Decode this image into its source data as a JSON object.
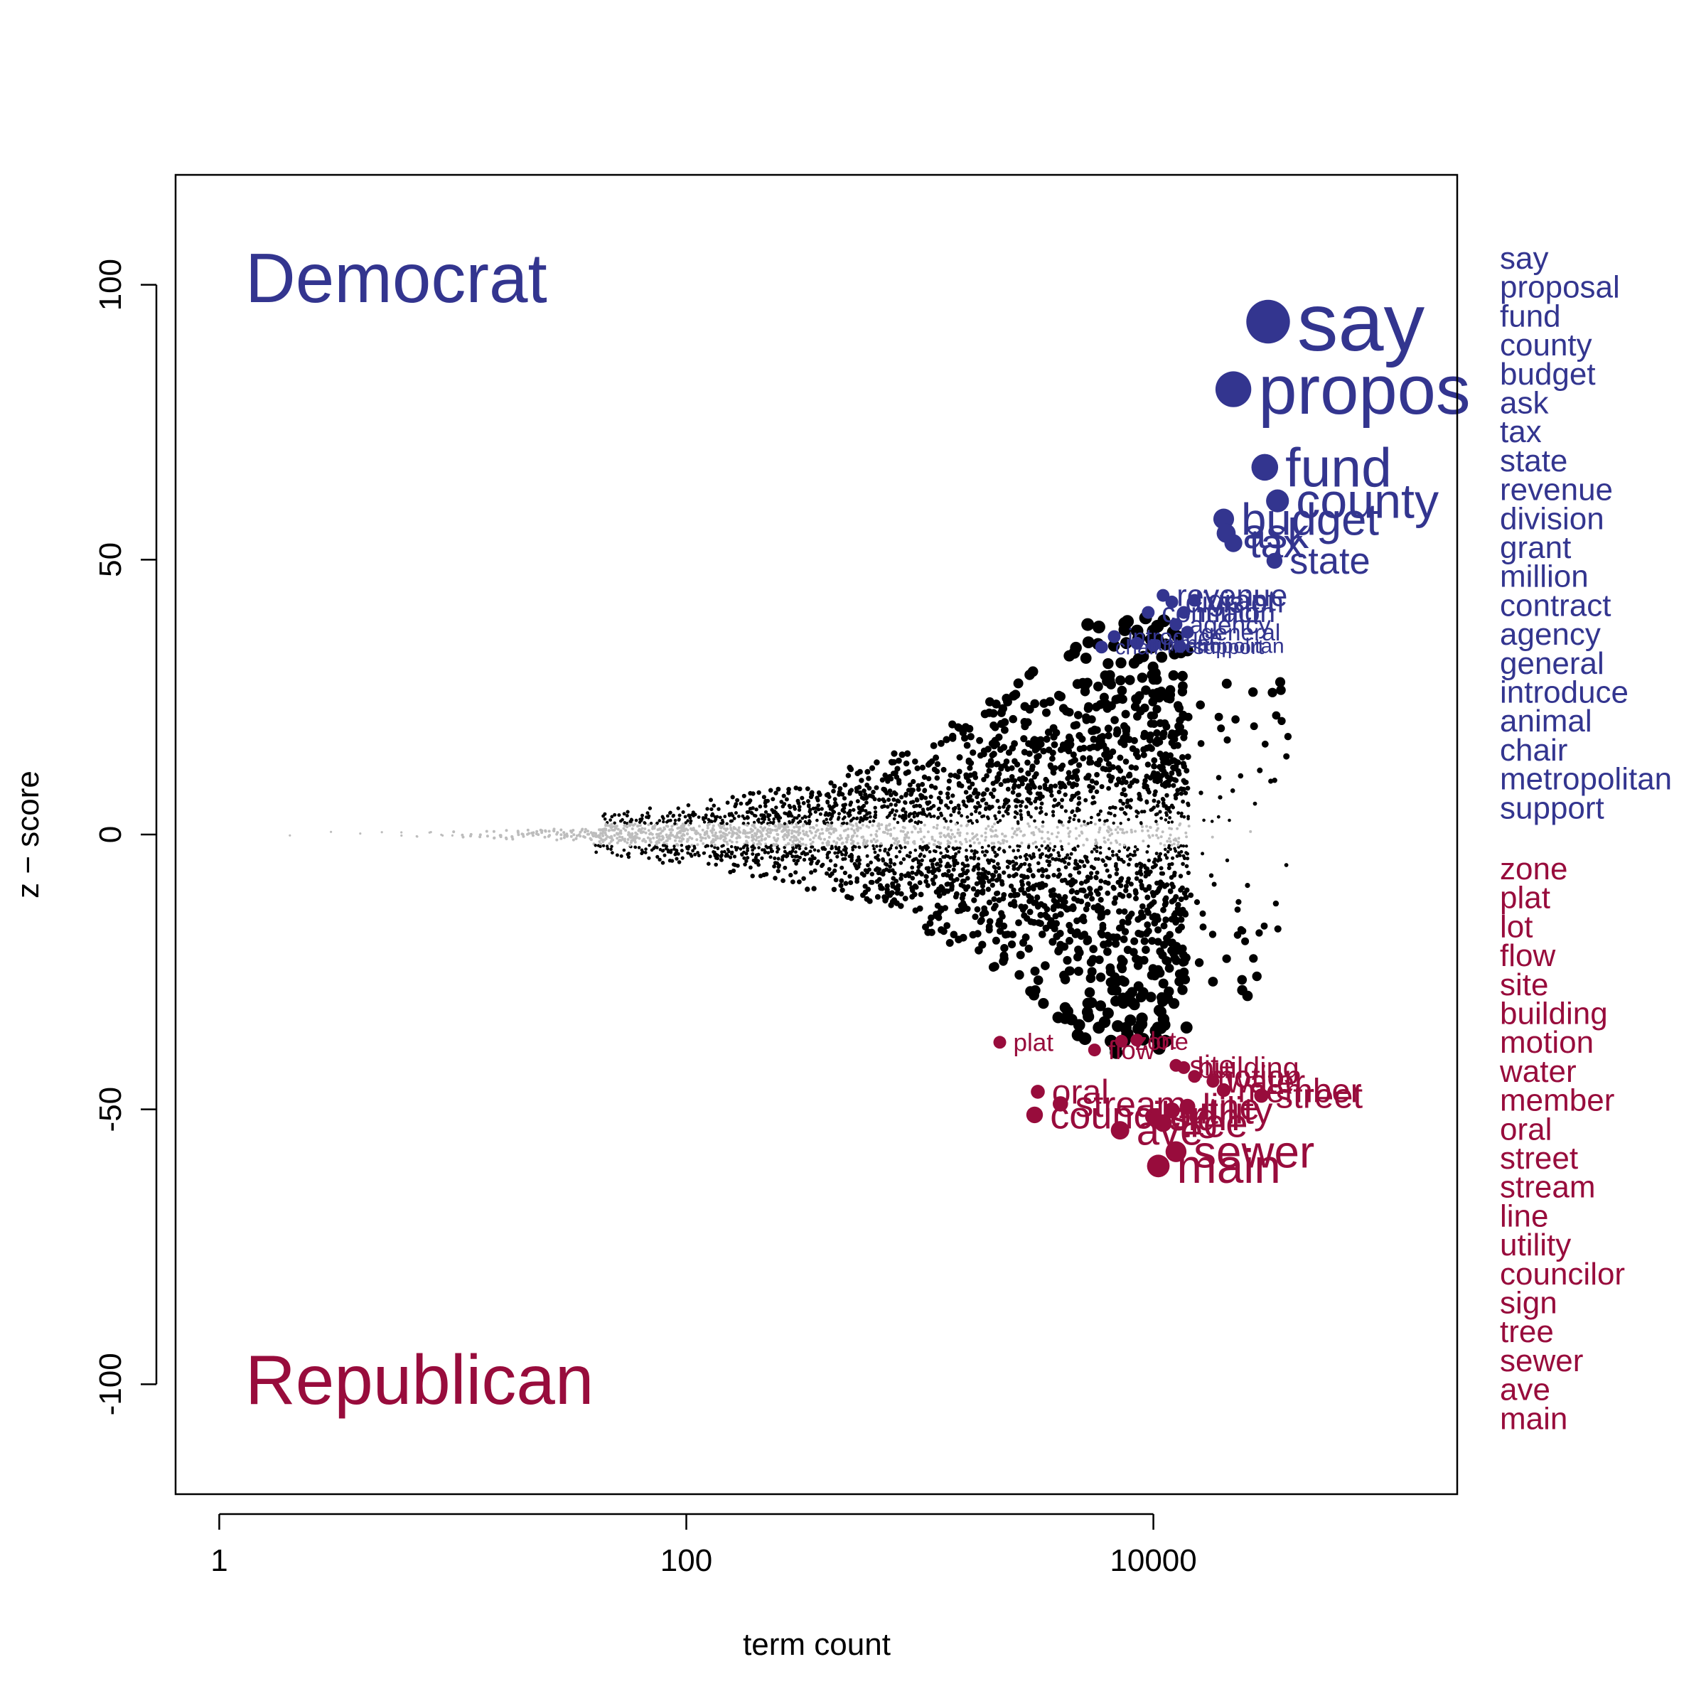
{
  "chart_data": {
    "type": "scatter",
    "xlabel": "term count",
    "ylabel": "z − score",
    "x_scale": "log10",
    "xlim": [
      0.65,
      200000
    ],
    "ylim": [
      -120,
      120
    ],
    "x_ticks": [
      {
        "value": 1,
        "label": "1"
      },
      {
        "value": 100,
        "label": "100"
      },
      {
        "value": 10000,
        "label": "10000"
      }
    ],
    "y_ticks": [
      {
        "value": 100,
        "label": "100"
      },
      {
        "value": 50,
        "label": "50"
      },
      {
        "value": 0,
        "label": "0"
      },
      {
        "value": -50,
        "label": "-50"
      },
      {
        "value": -100,
        "label": "-100"
      }
    ],
    "grid": false,
    "colors": {
      "democrat": "#33358f",
      "republican": "#980c3c",
      "neutral": "#000000",
      "insignificant": "#bdbdbd"
    },
    "group_labels": {
      "democrat": "Democrat",
      "republican": "Republican"
    },
    "democrat_terms": [
      {
        "term": "say",
        "count": 31000,
        "z": 93.3
      },
      {
        "term": "propos",
        "count": 22000,
        "z": 81.0
      },
      {
        "term": "fund",
        "count": 30000,
        "z": 66.8
      },
      {
        "term": "county",
        "count": 34000,
        "z": 60.7
      },
      {
        "term": "budget",
        "count": 20000,
        "z": 57.4
      },
      {
        "term": "ask",
        "count": 20500,
        "z": 54.8
      },
      {
        "term": "tax",
        "count": 22000,
        "z": 53.0
      },
      {
        "term": "state",
        "count": 33000,
        "z": 49.8
      },
      {
        "term": "revenue",
        "count": 11000,
        "z": 43.5
      },
      {
        "term": "division",
        "count": 12000,
        "z": 42.3
      },
      {
        "term": "grant",
        "count": 15000,
        "z": 42.6
      },
      {
        "term": "million",
        "count": 13500,
        "z": 40.4
      },
      {
        "term": "contract",
        "count": 9500,
        "z": 40.4
      },
      {
        "term": "agency",
        "count": 12500,
        "z": 38.2
      },
      {
        "term": "general",
        "count": 14000,
        "z": 36.8
      },
      {
        "term": "introduce",
        "count": 6800,
        "z": 36.0
      },
      {
        "term": "animal",
        "count": 8500,
        "z": 34.8
      },
      {
        "term": "chair",
        "count": 6000,
        "z": 34.1
      },
      {
        "term": "metropolitan",
        "count": 10000,
        "z": 34.4
      },
      {
        "term": "support",
        "count": 13000,
        "z": 34.2
      }
    ],
    "republican_terms": [
      {
        "term": "zone",
        "count": 7300,
        "z": -37.6
      },
      {
        "term": "plat",
        "count": 2200,
        "z": -37.8
      },
      {
        "term": "lot",
        "count": 8500,
        "z": -37.4
      },
      {
        "term": "flow",
        "count": 5600,
        "z": -39.2
      },
      {
        "term": "site",
        "count": 12500,
        "z": -42.0
      },
      {
        "term": "building",
        "count": 13500,
        "z": -42.4
      },
      {
        "term": "motion",
        "count": 15000,
        "z": -44.0
      },
      {
        "term": "water",
        "count": 18000,
        "z": -44.9
      },
      {
        "term": "member",
        "count": 20000,
        "z": -46.5
      },
      {
        "term": "oral",
        "count": 3200,
        "z": -46.8
      },
      {
        "term": "street",
        "count": 29000,
        "z": -47.5
      },
      {
        "term": "stream",
        "count": 4000,
        "z": -49.0
      },
      {
        "term": "line",
        "count": 14000,
        "z": -49.5
      },
      {
        "term": "utility",
        "count": 12000,
        "z": -50.2
      },
      {
        "term": "councilor",
        "count": 3100,
        "z": -51.0
      },
      {
        "term": "sign",
        "count": 10000,
        "z": -51.3
      },
      {
        "term": "tree",
        "count": 11000,
        "z": -52.5
      },
      {
        "term": "sewer",
        "count": 12500,
        "z": -57.7
      },
      {
        "term": "ave",
        "count": 7200,
        "z": -53.8
      },
      {
        "term": "main",
        "count": 10500,
        "z": -60.3
      }
    ],
    "other_points": "approx. 5000 non-highlighted terms: black dots (|z| above significance threshold) and gray dots (insignificant), fanning out from count ~1 to ~40000 with |z| up to ~40"
  },
  "side_legend": {
    "democrat": [
      "say",
      "proposal",
      "fund",
      "county",
      "budget",
      "ask",
      "tax",
      "state",
      "revenue",
      "division",
      "grant",
      "million",
      "contract",
      "agency",
      "general",
      "introduce",
      "animal",
      "chair",
      "metropolitan",
      "support"
    ],
    "republican": [
      "zone",
      "plat",
      "lot",
      "flow",
      "site",
      "building",
      "motion",
      "water",
      "member",
      "oral",
      "street",
      "stream",
      "line",
      "utility",
      "councilor",
      "sign",
      "tree",
      "sewer",
      "ave",
      "main"
    ]
  }
}
